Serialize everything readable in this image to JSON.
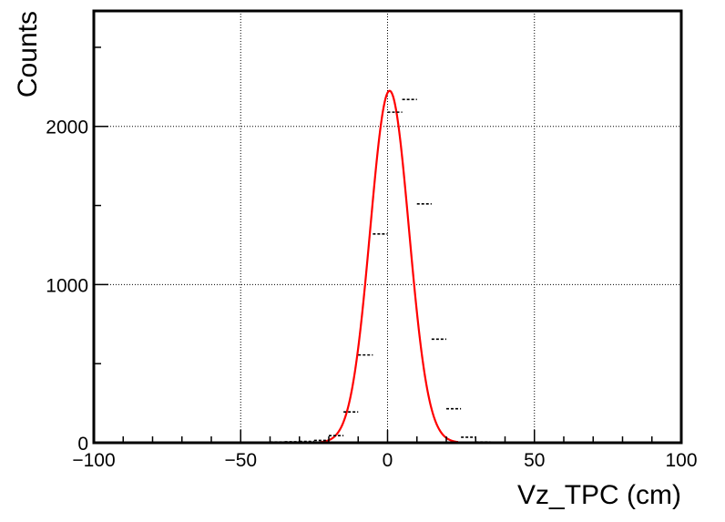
{
  "chart_data": {
    "type": "scatter",
    "xlabel": "Vz_TPC (cm)",
    "ylabel": "Counts",
    "xlim": [
      -100,
      100
    ],
    "ylim": [
      0,
      2730
    ],
    "x_ticks": [
      "−100",
      "−50",
      "0",
      "50",
      "100"
    ],
    "x_tick_values": [
      -100,
      -50,
      0,
      50,
      100
    ],
    "y_ticks": [
      "0",
      "1000",
      "2000"
    ],
    "y_tick_values": [
      0,
      1000,
      2000
    ],
    "grid": true,
    "bin_width": 5,
    "series": [
      {
        "kind": "histogram_points",
        "color": "#000000",
        "x": [
          -97.5,
          -92.5,
          -87.5,
          -82.5,
          -77.5,
          -72.5,
          -67.5,
          -62.5,
          -57.5,
          -52.5,
          -47.5,
          -42.5,
          -37.5,
          -32.5,
          -27.5,
          -22.5,
          -17.5,
          -12.5,
          -7.5,
          -2.5,
          2.5,
          7.5,
          12.5,
          17.5,
          22.5,
          27.5,
          32.5,
          37.5,
          42.5,
          47.5,
          52.5,
          57.5,
          62.5,
          67.5,
          72.5,
          77.5,
          82.5,
          87.5,
          92.5,
          97.5
        ],
        "y": [
          0,
          0,
          0,
          0,
          0,
          0,
          0,
          0,
          0,
          0,
          0,
          3,
          5,
          6,
          8,
          15,
          45,
          195,
          555,
          1320,
          2090,
          2170,
          1510,
          655,
          215,
          35,
          5,
          2,
          0,
          0,
          0,
          0,
          0,
          0,
          0,
          0,
          0,
          0,
          0,
          0
        ]
      },
      {
        "kind": "fit_curve",
        "color": "#ff0000",
        "function": "gaus",
        "amplitude": 2225,
        "mean": 0.7,
        "sigma": 6.6
      }
    ]
  }
}
